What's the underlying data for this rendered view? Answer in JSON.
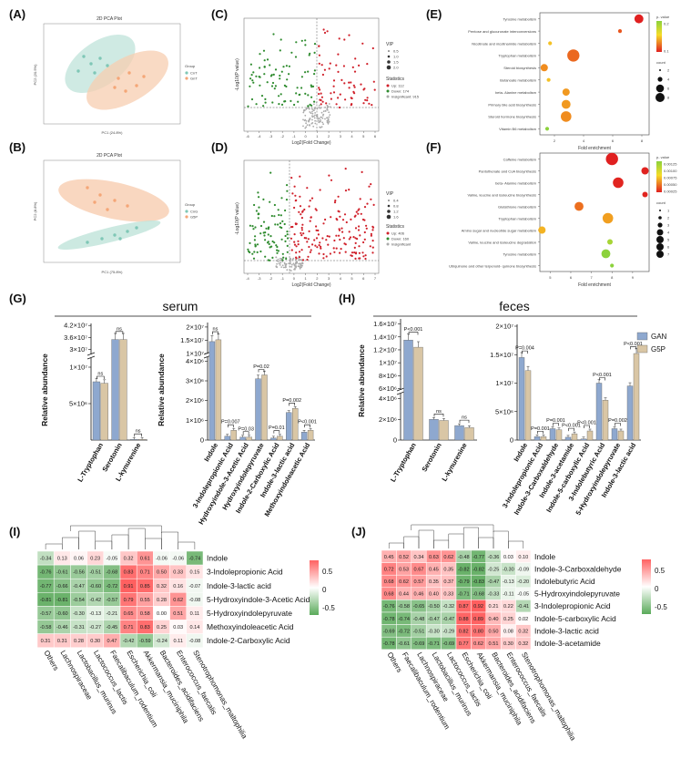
{
  "panel_labels": [
    "(A)",
    "(B)",
    "(C)",
    "(D)",
    "(E)",
    "(F)",
    "(G)",
    "(H)",
    "(I)",
    "(J)"
  ],
  "colors": {
    "gan": "#8ea8cf",
    "g5p": "#d9c6a5",
    "cnt": "#7fc7b6",
    "cnt_fill": "#bfe3da",
    "gnt": "#f4a677",
    "gnt_fill": "#f7cdb0",
    "up": "#d0202a",
    "down": "#2e8b2e",
    "ns": "#aaaaaa",
    "hm_pos": "#e05050",
    "hm_neg": "#48a048"
  },
  "pca": [
    {
      "title": "2D PCA Plot",
      "xlabel": "PC1 (24.8%)",
      "ylabel": "PC2 (20.5%)",
      "legend_title": "Group",
      "legend": [
        "CnT",
        "GnT"
      ]
    },
    {
      "title": "2D PCA Plot",
      "xlabel": "PC1 (75.8%)",
      "ylabel": "PC2 (8.8%)",
      "legend_title": "Group",
      "legend": [
        "CnG",
        "G5P"
      ]
    }
  ],
  "volcano": [
    {
      "ylabel": "-Log10(P value)",
      "xlabel": "Log2(Fold Change)",
      "vip_title": "VIP",
      "vip": [
        "0.5",
        "1.0",
        "1.5",
        "2.0"
      ],
      "stat_title": "Statistics",
      "stats": [
        "Up: 112",
        "Down: 174",
        "Insignificant: 915"
      ],
      "xticks": [
        "-6",
        "-4",
        "-3",
        "-2",
        "-1",
        "0",
        "1",
        "2",
        "3",
        "4",
        "5",
        "6"
      ]
    },
    {
      "ylabel": "-Log10(P value)",
      "xlabel": "Log2(Fold Change)",
      "vip_title": "VIP",
      "vip": [
        "0.4",
        "0.8",
        "1.2",
        "1.6"
      ],
      "stat_title": "Statistics",
      "stats": [
        "Up: 406",
        "Down: 160",
        "Insignificant"
      ],
      "xticks": [
        "-4",
        "-3",
        "-2",
        "-1",
        "0",
        "1",
        "2",
        "3",
        "4",
        "5",
        "6",
        "7"
      ]
    }
  ],
  "chart_data": [
    {
      "type": "scatter",
      "panel": "E",
      "title": "KEGG enrichment",
      "xlabel": "Fold enrichment",
      "xlim": [
        1,
        8.5
      ],
      "xticks": [
        "2",
        "4",
        "6",
        "8"
      ],
      "categories": [
        "Tyrosine metabolism",
        "Pentose and glucuronate interconversions",
        "Nicotinate and nicotinamide metabolism",
        "Tryptophan metabolism",
        "Steroid biosynthesis",
        "Butanoate metabolism",
        "beta- Alanine metabolism",
        "Primary bile acid biosynthesis",
        "Steroid hormone biosynthesis",
        "Vitamin B6 metabolism"
      ],
      "x": [
        7.8,
        6.5,
        1.7,
        3.3,
        1.3,
        1.6,
        2.8,
        2.8,
        2.8,
        1.5
      ],
      "count": [
        4,
        1,
        1,
        6,
        3,
        1,
        3,
        4,
        5,
        1
      ],
      "p": [
        0.02,
        0.05,
        0.12,
        0.06,
        0.08,
        0.12,
        0.09,
        0.09,
        0.08,
        0.2
      ],
      "legend_p_title": "p- value",
      "legend_p": [
        "0.2",
        "0.1"
      ],
      "legend_count_title": "count",
      "legend_count": [
        "2",
        "4",
        "6",
        "8"
      ]
    },
    {
      "type": "scatter",
      "panel": "F",
      "title": "KEGG enrichment",
      "xlabel": "Fold enrichment",
      "xlim": [
        4.5,
        9.8
      ],
      "xticks": [
        "5",
        "6",
        "7",
        "8",
        "9"
      ],
      "categories": [
        "Caffeine metabolism",
        "Pantothenate and CoA biosynthesis",
        "beta- Alanine metabolism",
        "Valine, leucine and isoleucine biosynthesis",
        "Glutathione metabolism",
        "Tryptophan metabolism",
        "Amino sugar and nucleotide sugar metabolism",
        "Valine, leucine and isoleucine degradation",
        "Tyrosine metabolism",
        "Ubiquinone and other terpenoid- quinone biosynthesis"
      ],
      "x": [
        8.0,
        9.6,
        8.3,
        9.6,
        6.4,
        7.8,
        4.6,
        7.9,
        7.7,
        8.0
      ],
      "count": [
        6,
        3,
        5,
        2,
        4,
        5,
        3,
        2,
        4,
        1
      ],
      "p": [
        1e-05,
        2e-05,
        3e-05,
        3e-05,
        0.0003,
        0.0005,
        0.0006,
        0.0011,
        0.0012,
        0.0012
      ],
      "legend_p_title": "p- value",
      "legend_p": [
        "0.00125",
        "0.00100",
        "0.00075",
        "0.00050",
        "0.00025"
      ],
      "legend_count_title": "count",
      "legend_count": [
        "1",
        "2",
        "3",
        "4",
        "5",
        "6",
        "7"
      ]
    },
    {
      "type": "bar",
      "panel": "G",
      "title": "serum",
      "ylabel": "Relative abundance",
      "series": [
        "GAN",
        "G5P"
      ],
      "left": {
        "categories": [
          "L-Tryptophan",
          "Serotonin",
          "L-kynurenine"
        ],
        "values": [
          [
            8000000.0,
            7800000.0
          ],
          [
            35000000.0,
            35000000.0
          ],
          [
            100000.0,
            100000.0
          ]
        ],
        "sig": [
          "ns",
          "ns",
          "ns"
        ],
        "upper_ticks": [
          "4.2×10⁷",
          "3.6×10⁷",
          "3×10⁷"
        ],
        "lower_ticks": [
          "1×10⁷",
          "5×10⁶",
          "0"
        ]
      },
      "right": {
        "categories": [
          "Indole",
          "3-Indolepropionic Acid",
          "Hydroxyindole-3-Acetic Acid",
          "Hydroxyindolepyruvate",
          "Indole-2-Carboxylic Acid",
          "Indole-3-lactic acid",
          "Methoxyindoleacetic Acid"
        ],
        "values": [
          [
            14500000.0,
            15200000.0
          ],
          [
            200000.0,
            500000.0
          ],
          [
            150000.0,
            150000.0
          ],
          [
            3100000.0,
            3300000.0
          ],
          [
            100000.0,
            200000.0
          ],
          [
            1400000.0,
            1600000.0
          ],
          [
            400000.0,
            500000.0
          ]
        ],
        "sig": [
          "ns",
          "P=0.007",
          "P=0.03",
          "P=0.02",
          "P=0.01",
          "P=0.002",
          "P<0.001"
        ],
        "upper_ticks": [
          "2×10⁷",
          "1.5×10⁷",
          "1×10⁷"
        ],
        "lower_ticks": [
          "4×10⁶",
          "3×10⁶",
          "2×10⁶",
          "1×10⁶",
          "0"
        ]
      }
    },
    {
      "type": "bar",
      "panel": "H",
      "title": "feces",
      "ylabel": "Relative abundance",
      "series": [
        "GAN",
        "G5P"
      ],
      "left": {
        "categories": [
          "L-Tryptophan",
          "Serotonin",
          "L-kynurenine"
        ],
        "values": [
          [
            13500000.0,
            12400000.0
          ],
          [
            2000000.0,
            1900000.0
          ],
          [
            1400000.0,
            1200000.0
          ]
        ],
        "sig": [
          "P<0.001",
          "ns",
          "ns"
        ],
        "upper_ticks": [
          "1.6×10⁷",
          "1.4×10⁷",
          "1.2×10⁷",
          "1×10⁷",
          "8×10⁶",
          "6×10⁶"
        ],
        "lower_ticks": [
          "4×10⁶",
          "2×10⁶",
          "0"
        ]
      },
      "right": {
        "categories": [
          "Indole",
          "3-Indolepropionic Acid",
          "Indole-3-Carboxaldehyde",
          "Indole-3-acetamide",
          "Indole-5-carboxylic Acid",
          "3-Indolebutyric Acid",
          "5-Hydroxyindolepyruvate",
          "Indole-3-lactic acid"
        ],
        "values": [
          [
            14500000.0,
            12200000.0
          ],
          [
            600000.0,
            600000.0
          ],
          [
            2000000.0,
            1800000.0
          ],
          [
            500000.0,
            1100000.0
          ],
          [
            200000.0,
            1600000.0
          ],
          [
            10000000.0,
            7000000.0
          ],
          [
            2000000.0,
            1600000.0
          ],
          [
            9500000.0,
            15200000.0
          ]
        ],
        "sig": [
          "P=0.004",
          "P=0.001",
          "P=0.001",
          "P<0.001",
          "P<0.001",
          "P<0.001",
          "P=0.002",
          "P<0.001"
        ],
        "ticks": [
          "2×10⁷",
          "1.5×10⁷",
          "1×10⁷",
          "5×10⁶",
          "0"
        ]
      }
    },
    {
      "type": "heatmap",
      "panel": "I",
      "rows": [
        "Indole",
        "3-Indolepropionic Acid",
        "Indole-3-lactic acid",
        "5-Hydroxyindole-3-Acetic Acid",
        "5-Hydroxyindolepyruvate",
        "Methoxyindoleacetic Acid",
        "Indole-2-Carboxylic Acid"
      ],
      "cols": [
        "Others",
        "Lachnospiraceae",
        "Lactobacillus_murinus",
        "Lactococcus_lactis",
        "Faecalibaculum_rodentium",
        "Escherichia_coli",
        "Akkermansia_muciniphila",
        "Bacteroides_acidifaciens",
        "Enterococcus_faecalis",
        "Stenotrophomonas_maltophilia"
      ],
      "values": [
        [
          -0.34,
          0.13,
          0.06,
          0.23,
          -0.05,
          0.32,
          0.61,
          -0.06,
          -0.06,
          -0.74
        ],
        [
          -0.76,
          -0.61,
          -0.56,
          -0.51,
          -0.68,
          0.83,
          0.71,
          0.5,
          0.33,
          0.15
        ],
        [
          -0.77,
          -0.66,
          -0.47,
          -0.6,
          -0.72,
          0.91,
          0.85,
          0.32,
          0.16,
          -0.07
        ],
        [
          -0.81,
          -0.81,
          -0.54,
          -0.42,
          -0.57,
          0.79,
          0.55,
          0.28,
          0.62,
          -0.08
        ],
        [
          -0.57,
          -0.6,
          -0.3,
          -0.13,
          -0.21,
          0.65,
          0.58,
          0.0,
          0.51,
          0.11
        ],
        [
          -0.58,
          -0.46,
          -0.31,
          -0.27,
          -0.45,
          0.71,
          0.83,
          0.25,
          0.03,
          0.14
        ],
        [
          0.31,
          0.31,
          0.28,
          0.3,
          0.47,
          -0.42,
          -0.59,
          -0.24,
          0.11,
          -0.08
        ]
      ],
      "legend_ticks": [
        "0.5",
        "0",
        "-0.5"
      ]
    },
    {
      "type": "heatmap",
      "panel": "J",
      "rows": [
        "Indole",
        "Indole-3-Carboxaldehyde",
        "Indolebutyric Acid",
        "5-Hydroxyindolepyruvate",
        "3-Indolepropionic Acid",
        "Indole-5-carboxylic Acid",
        "Indole-3-lactic acid",
        "Indole-3-acetamide"
      ],
      "cols": [
        "Others",
        "Faecalibaculum_rodentium",
        "Lachnospiraceae",
        "Lactobacillus_murinus",
        "Lactococcus_lactis",
        "Escherichia_coli",
        "Akkermansia_muciniphila",
        "Bacteroides_acidifaciens",
        "Enterococcus_faecalis",
        "Stenotrophomonas_maltophilia"
      ],
      "values": [
        [
          0.45,
          0.52,
          0.34,
          0.63,
          0.62,
          -0.48,
          -0.77,
          -0.36,
          0.03,
          0.1
        ],
        [
          0.72,
          0.53,
          0.67,
          0.45,
          0.35,
          -0.82,
          -0.82,
          -0.25,
          -0.3,
          -0.09
        ],
        [
          0.68,
          0.62,
          0.57,
          0.35,
          0.37,
          -0.79,
          -0.83,
          -0.47,
          -0.13,
          -0.2
        ],
        [
          0.68,
          0.44,
          0.46,
          0.4,
          0.33,
          -0.71,
          -0.68,
          -0.33,
          -0.11,
          -0.05
        ],
        [
          -0.76,
          -0.58,
          -0.65,
          -0.5,
          -0.32,
          0.87,
          0.92,
          0.21,
          0.22,
          -0.41
        ],
        [
          -0.78,
          -0.74,
          -0.48,
          -0.47,
          -0.47,
          0.88,
          0.89,
          0.4,
          0.25,
          0.02
        ],
        [
          -0.69,
          -0.72,
          -0.51,
          -0.3,
          -0.29,
          0.82,
          0.8,
          0.5,
          0.08,
          0.32
        ],
        [
          -0.78,
          -0.61,
          -0.69,
          -0.71,
          -0.69,
          0.77,
          0.62,
          0.51,
          0.3,
          0.32
        ]
      ],
      "legend_ticks": [
        "0.5",
        "0",
        "-0.5"
      ]
    }
  ]
}
